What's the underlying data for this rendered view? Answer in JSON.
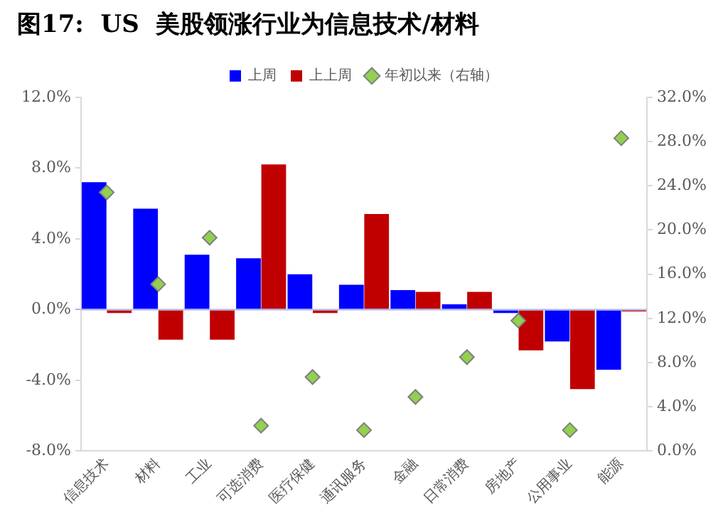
{
  "chart_data": {
    "type": "bar",
    "title": "图17:  US  美股领涨行业为信息技术/材料",
    "categories": [
      "信息技术",
      "材料",
      "工业",
      "可选消费",
      "医疗保健",
      "通讯服务",
      "金融",
      "日常消费",
      "房地产",
      "公用事业",
      "能源"
    ],
    "series": [
      {
        "name": "上周",
        "color": "#0000ff",
        "values": [
          7.2,
          5.7,
          3.1,
          2.9,
          2.0,
          1.4,
          1.1,
          0.3,
          -0.2,
          -1.8,
          -3.4
        ]
      },
      {
        "name": "上上周",
        "color": "#c00000",
        "values": [
          -0.2,
          -1.7,
          -1.7,
          8.2,
          -0.2,
          5.4,
          1.0,
          1.0,
          -2.3,
          -4.5,
          -0.1
        ]
      },
      {
        "name": "年初以来（右轴）",
        "type": "scatter",
        "axis": "y2",
        "color": "#92d050",
        "marker": "diamond",
        "values": [
          23.4,
          15.1,
          19.3,
          2.3,
          6.7,
          1.9,
          4.9,
          8.5,
          11.8,
          1.9,
          28.3
        ]
      }
    ],
    "ylim": [
      -8,
      12
    ],
    "yticks": [
      {
        "value": -8,
        "label": "-8.0%"
      },
      {
        "value": -4,
        "label": "-4.0%"
      },
      {
        "value": 0,
        "label": "0.0%"
      },
      {
        "value": 4,
        "label": "4.0%"
      },
      {
        "value": 8,
        "label": "8.0%"
      },
      {
        "value": 12,
        "label": "12.0%"
      }
    ],
    "y2lim": [
      0,
      32
    ],
    "y2ticks": [
      {
        "value": 0,
        "label": "0.0%"
      },
      {
        "value": 4,
        "label": "4.0%"
      },
      {
        "value": 8,
        "label": "8.0%"
      },
      {
        "value": 12,
        "label": "12.0%"
      },
      {
        "value": 16,
        "label": "16.0%"
      },
      {
        "value": 20,
        "label": "20.0%"
      },
      {
        "value": 24,
        "label": "24.0%"
      },
      {
        "value": 28,
        "label": "28.0%"
      },
      {
        "value": 32,
        "label": "32.0%"
      }
    ],
    "ref_lines": [
      {
        "axis": "y",
        "value": 0,
        "color": "#aab4f0"
      }
    ],
    "grid": false,
    "legend": "top"
  }
}
